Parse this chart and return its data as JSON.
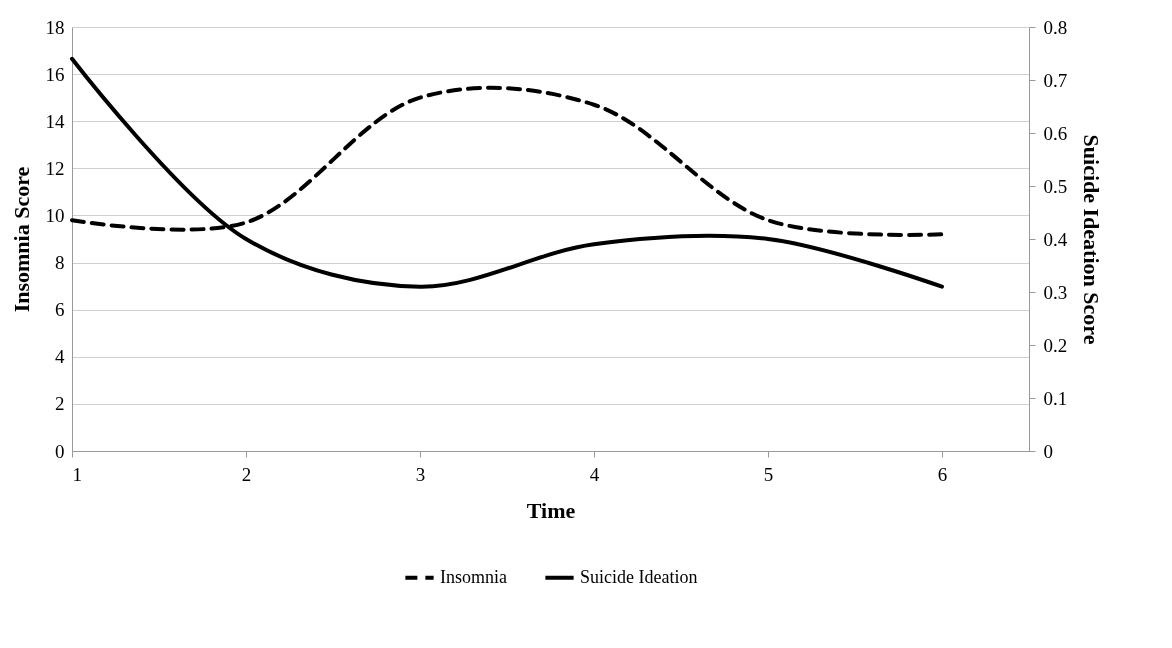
{
  "chart_data": {
    "type": "line",
    "xlabel": "Time",
    "ylabel": "Insomnia Score",
    "y2label": "Suicide Ideation Score",
    "x": [
      1,
      2,
      3,
      4,
      5,
      6
    ],
    "xlim": [
      1,
      6.5
    ],
    "xticks": [
      1,
      2,
      3,
      4,
      5,
      6
    ],
    "ylim": [
      0,
      18
    ],
    "yticks": [
      0,
      2,
      4,
      6,
      8,
      10,
      12,
      14,
      16,
      18
    ],
    "y2lim": [
      0,
      0.8
    ],
    "y2ticks": [
      0,
      0.1,
      0.2,
      0.3,
      0.4,
      0.5,
      0.6,
      0.7,
      0.8
    ],
    "series": [
      {
        "name": "Insomnia",
        "color": "#000000",
        "line_style": "dashed",
        "values": [
          9.8,
          9.7,
          15.0,
          14.7,
          9.8,
          9.2
        ]
      },
      {
        "name": "Suicide Ideation",
        "color": "#000000",
        "line_style": "solid",
        "axis": "y2",
        "values": [
          0.74,
          0.4,
          0.31,
          0.39,
          0.4,
          0.31
        ]
      }
    ],
    "grid": "y",
    "legend": "bottom",
    "marker": "none"
  }
}
